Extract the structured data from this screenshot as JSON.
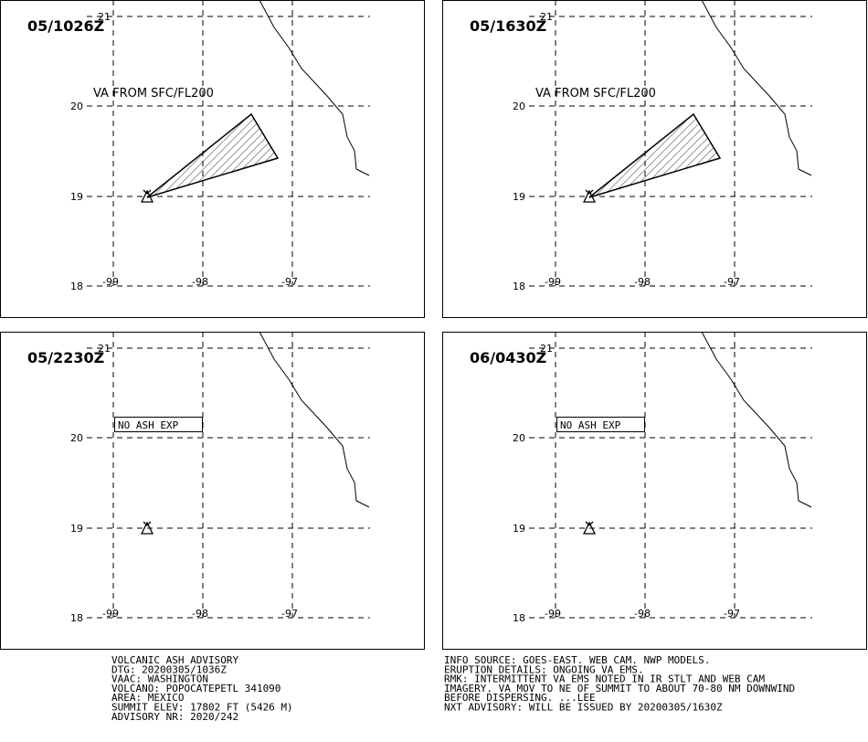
{
  "panels": [
    {
      "time": "05/1026Z",
      "annotation": "VA FROM SFC/FL200",
      "ash_area": true
    },
    {
      "time": "05/1630Z",
      "annotation": "VA FROM SFC/FL200",
      "ash_area": true
    },
    {
      "time": "05/2230Z",
      "annotation": "NO ASH EXP",
      "ash_area": false
    },
    {
      "time": "06/0430Z",
      "annotation": "NO ASH EXP",
      "ash_area": false
    }
  ],
  "lat_labels": [
    "21",
    "20",
    "19",
    "18"
  ],
  "lon_labels": [
    "-99",
    "-98",
    "-97"
  ],
  "advisory_left": [
    "VOLCANIC ASH ADVISORY",
    "DTG: 20200305/1036Z",
    "VAAC: WASHINGTON",
    "VOLCANO: POPOCATEPETL 341090",
    "AREA: MEXICO",
    "SUMMIT ELEV: 17802 FT (5426 M)",
    "ADVISORY NR: 2020/242"
  ],
  "advisory_right": [
    "INFO SOURCE: GOES-EAST. WEB CAM. NWP MODELS.",
    "ERUPTION DETAILS: ONGOING VA EMS.",
    "RMK: INTERMITTENT VA EMS NOTED IN IR STLT AND WEB CAM",
    "IMAGERY. VA MOV TO NE OF SUMMIT TO ABOUT 70-80 NM DOWNWIND",
    "BEFORE DISPERSING. ...LEE",
    "NXT ADVISORY: WILL BE ISSUED BY 20200305/1630Z"
  ]
}
